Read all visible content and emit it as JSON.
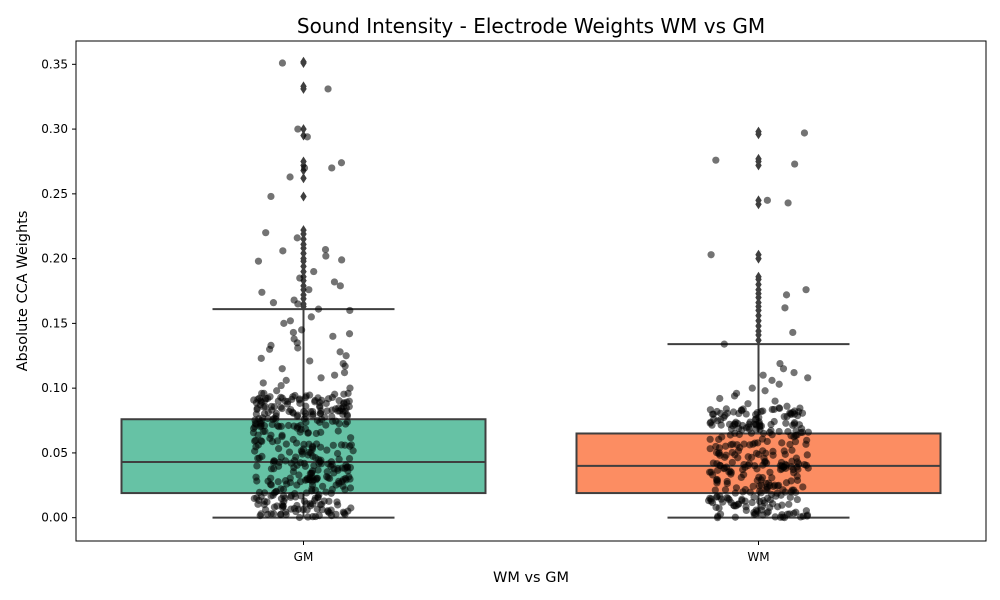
{
  "chart_data": {
    "type": "box",
    "title": "Sound Intensity - Electrode Weights WM vs GM",
    "xlabel": "WM vs GM",
    "ylabel": "Absolute CCA Weights",
    "ylim": [
      -0.018,
      0.368
    ],
    "yticks": [
      0.0,
      0.05,
      0.1,
      0.15,
      0.2,
      0.25,
      0.3,
      0.35
    ],
    "ytick_labels": [
      "0.00",
      "0.05",
      "0.10",
      "0.15",
      "0.20",
      "0.25",
      "0.30",
      "0.35"
    ],
    "categories": [
      "GM",
      "WM"
    ],
    "grid": false,
    "colors": {
      "GM": "#66c2a5",
      "WM": "#fc8d62",
      "box_edge": "#3f3f3f",
      "points": "#000000",
      "outlier": "#3f3f3f"
    },
    "boxes": [
      {
        "category": "GM",
        "whisker_low": 0.0,
        "q1": 0.019,
        "median": 0.043,
        "q3": 0.076,
        "whisker_high": 0.161,
        "outliers": [
          0.163,
          0.165,
          0.169,
          0.172,
          0.176,
          0.179,
          0.183,
          0.186,
          0.19,
          0.194,
          0.198,
          0.2,
          0.204,
          0.208,
          0.211,
          0.215,
          0.219,
          0.222,
          0.248,
          0.262,
          0.268,
          0.272,
          0.275,
          0.295,
          0.3,
          0.331,
          0.333,
          0.351,
          0.352
        ]
      },
      {
        "category": "WM",
        "whisker_low": 0.0,
        "q1": 0.019,
        "median": 0.04,
        "q3": 0.065,
        "whisker_high": 0.134,
        "outliers": [
          0.137,
          0.141,
          0.144,
          0.148,
          0.152,
          0.156,
          0.16,
          0.163,
          0.166,
          0.17,
          0.173,
          0.176,
          0.18,
          0.184,
          0.186,
          0.2,
          0.203,
          0.242,
          0.245,
          0.272,
          0.275,
          0.277,
          0.296,
          0.298
        ]
      }
    ],
    "strip": [
      {
        "category": "GM",
        "extra_points": [
          0.351,
          0.331,
          0.3,
          0.294,
          0.274,
          0.27,
          0.27,
          0.263,
          0.248,
          0.22,
          0.216,
          0.207,
          0.206,
          0.202,
          0.199,
          0.198,
          0.19,
          0.185,
          0.182,
          0.179,
          0.176,
          0.174,
          0.168,
          0.166,
          0.165,
          0.161,
          0.16,
          0.155,
          0.152,
          0.15,
          0.145,
          0.143,
          0.142,
          0.14,
          0.138,
          0.135,
          0.133,
          0.131,
          0.13,
          0.128,
          0.125,
          0.123,
          0.121,
          0.119,
          0.117,
          0.115,
          0.112,
          0.11,
          0.108,
          0.106,
          0.104,
          0.102,
          0.1,
          0.098,
          0.096,
          0.094,
          0.092,
          0.09,
          0.088,
          0.086,
          0.084,
          0.082,
          0.08,
          0.078
        ]
      },
      {
        "category": "WM",
        "extra_points": [
          0.297,
          0.276,
          0.273,
          0.245,
          0.243,
          0.203,
          0.176,
          0.172,
          0.162,
          0.143,
          0.134,
          0.119,
          0.115,
          0.112,
          0.11,
          0.108,
          0.106,
          0.103,
          0.1,
          0.098,
          0.096,
          0.094,
          0.092,
          0.09,
          0.088,
          0.086,
          0.084,
          0.082,
          0.08,
          0.078,
          0.076,
          0.074,
          0.072,
          0.07,
          0.068,
          0.066
        ]
      }
    ]
  }
}
